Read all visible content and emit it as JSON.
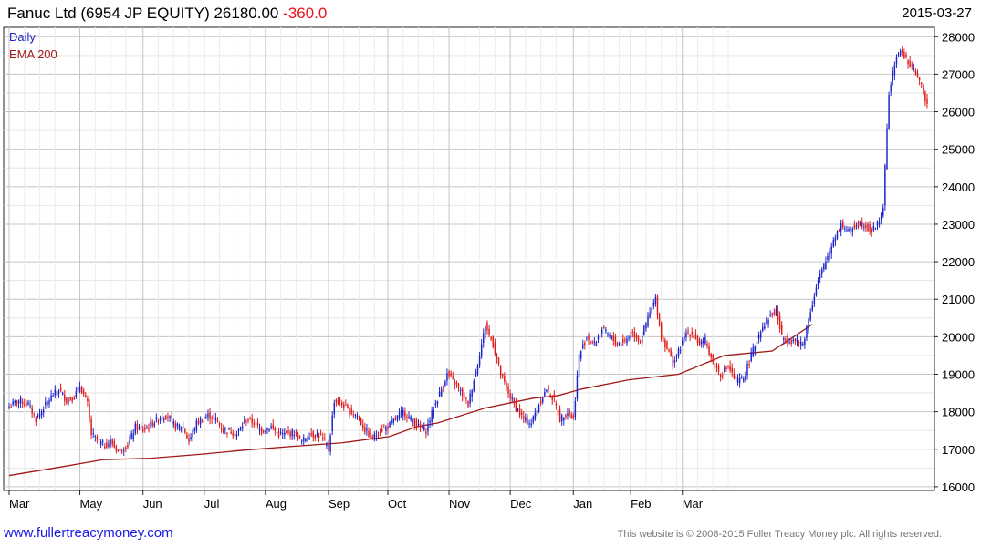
{
  "header": {
    "title": "Fanuc Ltd (6954 JP EQUITY) 26180.00",
    "change": "-360.0",
    "date": "2015-03-27"
  },
  "footer": {
    "link": "www.fullertreacymoney.com",
    "copyright": "This website is © 2008-2015 Fuller Treacy Money plc. All rights reserved."
  },
  "colors": {
    "up": "#1d24c8",
    "down": "#e01a1a",
    "ema": "#a01818",
    "change": "#e8141b",
    "grid": "#d6d6d6"
  },
  "chart_data": {
    "type": "candlestick",
    "x_tick_labels": [
      "Mar",
      "May",
      "Jun",
      "Jul",
      "Aug",
      "Sep",
      "Oct",
      "Nov",
      "Dec",
      "Jan",
      "Feb",
      "Mar"
    ],
    "y_tick_labels": [
      "16000",
      "17000",
      "18000",
      "19000",
      "20000",
      "21000",
      "22000",
      "23000",
      "24000",
      "25000",
      "26000",
      "27000",
      "28000"
    ],
    "ylim": [
      15900,
      28250
    ],
    "grid": true,
    "legend_position": "top-left",
    "legend": [
      {
        "label": "Daily",
        "color": "#1d24c8"
      },
      {
        "label": "EMA 200",
        "color": "#a01818"
      }
    ],
    "ema_200": [
      [
        0,
        16300
      ],
      [
        24,
        16500
      ],
      [
        49,
        16720
      ],
      [
        74,
        16760
      ],
      [
        99,
        16860
      ],
      [
        124,
        16980
      ],
      [
        149,
        17080
      ],
      [
        174,
        17170
      ],
      [
        199,
        17340
      ],
      [
        213,
        17600
      ],
      [
        224,
        17700
      ],
      [
        249,
        18100
      ],
      [
        274,
        18360
      ],
      [
        287,
        18430
      ],
      [
        299,
        18600
      ],
      [
        324,
        18850
      ],
      [
        350,
        19000
      ],
      [
        374,
        19500
      ],
      [
        399,
        19620
      ],
      [
        420,
        20330
      ]
    ],
    "daily": {
      "anchors": [
        [
          0,
          18150
        ],
        [
          5,
          18300
        ],
        [
          10,
          18200
        ],
        [
          14,
          17800
        ],
        [
          18,
          18100
        ],
        [
          22,
          18400
        ],
        [
          26,
          18600
        ],
        [
          30,
          18300
        ],
        [
          34,
          18400
        ],
        [
          37,
          18700
        ],
        [
          41,
          18200
        ],
        [
          43,
          17400
        ],
        [
          47,
          17200
        ],
        [
          50,
          17100
        ],
        [
          53,
          17200
        ],
        [
          57,
          16950
        ],
        [
          62,
          17100
        ],
        [
          66,
          17600
        ],
        [
          70,
          17500
        ],
        [
          75,
          17700
        ],
        [
          79,
          17850
        ],
        [
          83,
          17900
        ],
        [
          87,
          17600
        ],
        [
          91,
          17600
        ],
        [
          94,
          17200
        ],
        [
          98,
          17700
        ],
        [
          104,
          17900
        ],
        [
          108,
          17800
        ],
        [
          112,
          17500
        ],
        [
          115,
          17500
        ],
        [
          119,
          17400
        ],
        [
          124,
          17800
        ],
        [
          128,
          17700
        ],
        [
          132,
          17500
        ],
        [
          137,
          17600
        ],
        [
          141,
          17400
        ],
        [
          145,
          17400
        ],
        [
          149,
          17450
        ],
        [
          153,
          17200
        ],
        [
          157,
          17400
        ],
        [
          163,
          17350
        ],
        [
          167,
          17000
        ],
        [
          170,
          18300
        ],
        [
          174,
          18200
        ],
        [
          178,
          18000
        ],
        [
          182,
          17900
        ],
        [
          186,
          17500
        ],
        [
          190,
          17300
        ],
        [
          194,
          17500
        ],
        [
          198,
          17600
        ],
        [
          202,
          17800
        ],
        [
          206,
          18000
        ],
        [
          210,
          17800
        ],
        [
          214,
          17600
        ],
        [
          218,
          17500
        ],
        [
          222,
          18100
        ],
        [
          226,
          18600
        ],
        [
          229,
          19000
        ],
        [
          234,
          18700
        ],
        [
          240,
          18200
        ],
        [
          245,
          19300
        ],
        [
          249,
          20300
        ],
        [
          253,
          19800
        ],
        [
          257,
          19000
        ],
        [
          261,
          18500
        ],
        [
          265,
          18100
        ],
        [
          269,
          17800
        ],
        [
          273,
          17700
        ],
        [
          277,
          18200
        ],
        [
          281,
          18600
        ],
        [
          285,
          18300
        ],
        [
          288,
          17800
        ],
        [
          292,
          18000
        ],
        [
          295,
          17800
        ],
        [
          298,
          19500
        ],
        [
          302,
          20000
        ],
        [
          306,
          19800
        ],
        [
          310,
          20200
        ],
        [
          314,
          20000
        ],
        [
          318,
          19800
        ],
        [
          322,
          19900
        ],
        [
          326,
          20100
        ],
        [
          330,
          19900
        ],
        [
          334,
          20500
        ],
        [
          338,
          21000
        ],
        [
          341,
          20000
        ],
        [
          344,
          19700
        ],
        [
          347,
          19300
        ],
        [
          350,
          19600
        ],
        [
          354,
          20100
        ],
        [
          357,
          20100
        ],
        [
          361,
          19800
        ],
        [
          364,
          19900
        ],
        [
          368,
          19300
        ],
        [
          372,
          19000
        ],
        [
          376,
          19200
        ],
        [
          380,
          18800
        ],
        [
          384,
          18900
        ],
        [
          388,
          19500
        ],
        [
          393,
          20200
        ],
        [
          397,
          20500
        ],
        [
          401,
          20700
        ],
        [
          404,
          20000
        ],
        [
          407,
          19900
        ],
        [
          411,
          19900
        ],
        [
          415,
          19800
        ],
        [
          419,
          20700
        ],
        [
          423,
          21500
        ],
        [
          427,
          22000
        ],
        [
          431,
          22600
        ],
        [
          435,
          23000
        ],
        [
          439,
          22800
        ],
        [
          443,
          23000
        ],
        [
          447,
          23000
        ],
        [
          451,
          22800
        ],
        [
          455,
          23100
        ],
        [
          457,
          23500
        ],
        [
          460,
          26500
        ],
        [
          464,
          27500
        ],
        [
          467,
          27600
        ],
        [
          471,
          27200
        ],
        [
          475,
          27000
        ],
        [
          478,
          26500
        ],
        [
          480,
          26200
        ]
      ],
      "up_color": "#1d24c8",
      "down_color": "#e01a1a"
    }
  }
}
